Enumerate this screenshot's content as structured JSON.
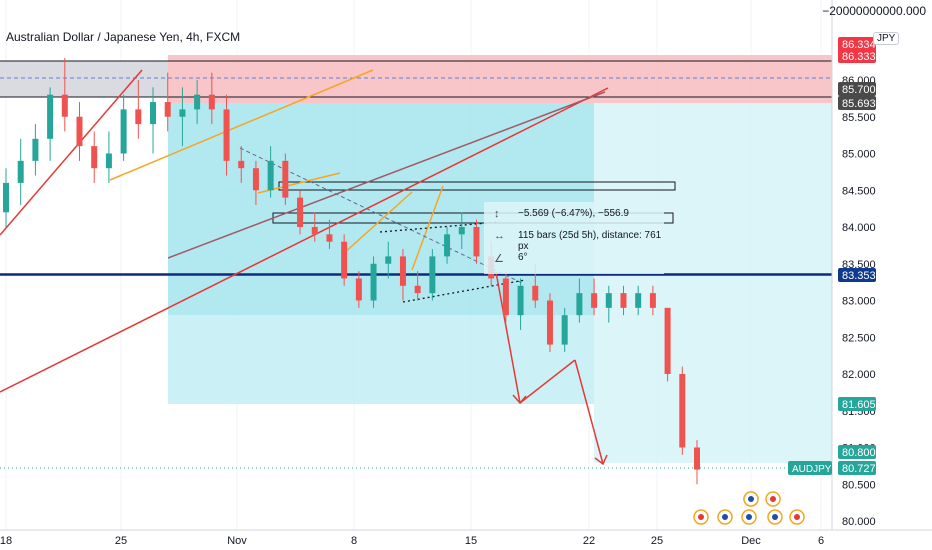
{
  "header": {
    "title": "Australian Dollar / Japanese Yen, 4h, FXCM",
    "top_readout": "−20000000000.000",
    "currency": "JPY"
  },
  "chart_data": {
    "type": "candlestick",
    "symbol": "AUDJPY",
    "timeframe": "4h",
    "x_ticks": [
      "18",
      "25",
      "Nov",
      "8",
      "15",
      "22",
      "25",
      "Dec",
      "6"
    ],
    "y_ticks": [
      "86.000",
      "85.500",
      "85.000",
      "84.500",
      "84.000",
      "83.500",
      "83.000",
      "82.500",
      "82.000",
      "81.500",
      "81.000",
      "80.500",
      "80.000"
    ],
    "ylim": [
      80.0,
      86.0
    ],
    "price_labels": [
      {
        "text": "86.334",
        "value": 86.334,
        "color": "#f23645"
      },
      {
        "text": "86.333",
        "value": 86.333,
        "color": "#f23645"
      },
      {
        "text": "85.700",
        "value": 85.7,
        "color": "#4a4a4a"
      },
      {
        "text": "85.693",
        "value": 85.693,
        "color": "#4a4a4a"
      },
      {
        "text": "83.353",
        "value": 83.353,
        "color": "#0d3a8c"
      },
      {
        "text": "81.605",
        "value": 81.605,
        "color": "#26a69a"
      },
      {
        "text": "80.800",
        "value": 80.8,
        "color": "#26a69a"
      },
      {
        "text": "80.727",
        "value": 80.727,
        "color": "#26a69a"
      }
    ],
    "symbol_tag": "AUDJPY",
    "key_level": 83.353,
    "measure": {
      "line1": "−5.569 (−6.47%), −556.9",
      "line2": "115 bars (25d 5h), distance: 761 px",
      "line3": "6°"
    },
    "ohlc": [
      [
        84.2,
        84.8,
        84.0,
        84.6
      ],
      [
        84.6,
        85.2,
        84.3,
        84.9
      ],
      [
        84.9,
        85.4,
        84.7,
        85.2
      ],
      [
        85.2,
        85.9,
        84.9,
        85.8
      ],
      [
        85.8,
        86.3,
        85.3,
        85.5
      ],
      [
        85.5,
        85.7,
        84.9,
        85.1
      ],
      [
        85.1,
        85.3,
        84.6,
        84.8
      ],
      [
        84.8,
        85.3,
        84.6,
        85.0
      ],
      [
        85.0,
        85.8,
        84.9,
        85.6
      ],
      [
        85.6,
        86.0,
        85.2,
        85.4
      ],
      [
        85.4,
        85.9,
        85.0,
        85.7
      ],
      [
        85.7,
        86.1,
        85.3,
        85.5
      ],
      [
        85.5,
        85.9,
        85.1,
        85.6
      ],
      [
        85.6,
        86.0,
        85.4,
        85.8
      ],
      [
        85.8,
        86.1,
        85.4,
        85.6
      ],
      [
        85.6,
        85.8,
        84.7,
        84.9
      ],
      [
        84.9,
        85.1,
        84.6,
        84.8
      ],
      [
        84.8,
        84.9,
        84.3,
        84.5
      ],
      [
        84.5,
        85.1,
        84.4,
        84.9
      ],
      [
        84.9,
        85.0,
        84.3,
        84.4
      ],
      [
        84.4,
        84.5,
        83.9,
        84.0
      ],
      [
        84.0,
        84.2,
        83.8,
        83.9
      ],
      [
        83.9,
        84.1,
        83.7,
        83.8
      ],
      [
        83.8,
        83.9,
        83.2,
        83.3
      ],
      [
        83.3,
        83.4,
        82.9,
        83.0
      ],
      [
        83.0,
        83.6,
        82.9,
        83.5
      ],
      [
        83.5,
        83.8,
        83.3,
        83.6
      ],
      [
        83.6,
        83.7,
        83.0,
        83.2
      ],
      [
        83.2,
        83.4,
        83.0,
        83.1
      ],
      [
        83.1,
        83.7,
        83.0,
        83.6
      ],
      [
        83.6,
        84.0,
        83.5,
        83.9
      ],
      [
        83.9,
        84.2,
        83.7,
        84.0
      ],
      [
        84.0,
        84.1,
        83.5,
        83.6
      ],
      [
        83.6,
        83.8,
        83.2,
        83.3
      ],
      [
        83.3,
        83.4,
        82.7,
        82.8
      ],
      [
        82.8,
        83.3,
        82.6,
        83.2
      ],
      [
        83.2,
        83.5,
        82.9,
        83.0
      ],
      [
        83.0,
        83.1,
        82.3,
        82.4
      ],
      [
        82.4,
        82.9,
        82.3,
        82.8
      ],
      [
        82.8,
        83.3,
        82.7,
        83.1
      ],
      [
        83.1,
        83.3,
        82.8,
        82.9
      ],
      [
        82.9,
        83.2,
        82.7,
        83.1
      ],
      [
        83.1,
        83.2,
        82.8,
        82.9
      ],
      [
        82.9,
        83.2,
        82.8,
        83.1
      ],
      [
        83.1,
        83.2,
        82.8,
        82.9
      ],
      [
        82.9,
        82.9,
        81.9,
        82.0
      ],
      [
        82.0,
        82.1,
        80.9,
        81.0
      ],
      [
        81.0,
        81.1,
        80.5,
        80.7
      ]
    ],
    "events": [
      "flag-icon",
      "flag-icon",
      "flag-icon",
      "flag-icon",
      "flag-icon",
      "flag-icon",
      "flag-icon",
      "flag-icon"
    ]
  }
}
